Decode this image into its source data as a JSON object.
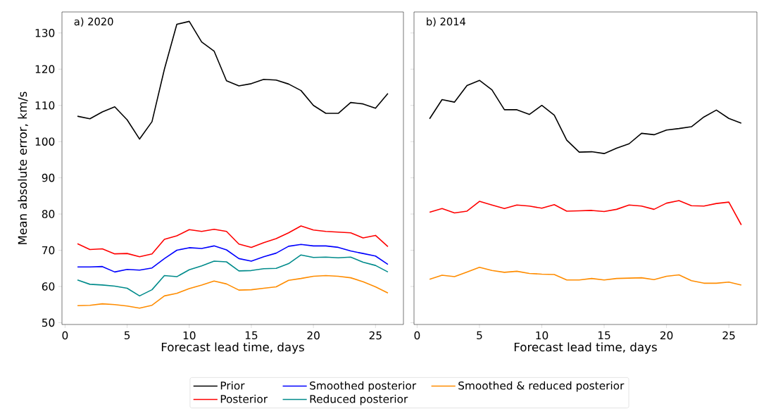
{
  "chart_data": [
    {
      "type": "line",
      "title": "a) 2020",
      "xlabel": "Forecast lead time, days",
      "ylabel": "Mean absolute error, km/s",
      "x": [
        1,
        2,
        3,
        4,
        5,
        6,
        7,
        8,
        9,
        10,
        11,
        12,
        13,
        14,
        15,
        16,
        17,
        18,
        19,
        20,
        21,
        22,
        23,
        24,
        25,
        26
      ],
      "xlim": [
        -0.25,
        27.25
      ],
      "xticks": [
        0,
        5,
        10,
        15,
        20,
        25
      ],
      "ylim": [
        49.5,
        135.8
      ],
      "yticks": [
        50,
        60,
        70,
        80,
        90,
        100,
        110,
        120,
        130
      ],
      "legend": "bottom",
      "line_style": "solid",
      "series": [
        {
          "name": "Prior",
          "color": "#000000",
          "values": [
            107,
            106.3,
            108.2,
            109.6,
            106,
            100.7,
            105.5,
            120,
            132.4,
            133.2,
            127.5,
            125,
            116.8,
            115.4,
            116,
            117.2,
            117,
            115.9,
            114.1,
            110,
            107.8,
            107.8,
            110.8,
            110.4,
            109.2,
            113.3
          ]
        },
        {
          "name": "Posterior",
          "color": "#ff0000",
          "values": [
            71.8,
            70.2,
            70.4,
            69,
            69.1,
            68.2,
            69,
            73,
            74,
            75.7,
            75.2,
            75.8,
            75.2,
            71.7,
            70.8,
            72.1,
            73.2,
            74.8,
            76.7,
            75.6,
            75.2,
            75,
            74.8,
            73.4,
            74.1,
            71
          ]
        },
        {
          "name": "Smoothed posterior",
          "color": "#0000ff",
          "values": [
            65.4,
            65.4,
            65.5,
            64,
            64.7,
            64.5,
            65.1,
            67.7,
            70,
            70.7,
            70.5,
            71.2,
            70.1,
            67.7,
            67,
            68.2,
            69.2,
            71.1,
            71.6,
            71.2,
            71.2,
            70.8,
            69.8,
            69.1,
            68.4,
            66.1
          ]
        },
        {
          "name": "Reduced posterior",
          "color": "#008b8b",
          "values": [
            61.8,
            60.6,
            60.4,
            60.1,
            59.5,
            57.4,
            59.1,
            63,
            62.7,
            64.6,
            65.7,
            67,
            66.8,
            64.3,
            64.4,
            64.9,
            65,
            66.3,
            68.7,
            68,
            68.1,
            67.9,
            68.1,
            66.7,
            65.8,
            64
          ]
        },
        {
          "name": "Smoothed & reduced posterior",
          "color": "#ff8c00",
          "values": [
            54.7,
            54.8,
            55.2,
            55,
            54.6,
            54,
            54.8,
            57.4,
            58.1,
            59.4,
            60.4,
            61.5,
            60.7,
            59,
            59.1,
            59.5,
            59.9,
            61.7,
            62.2,
            62.8,
            63,
            62.8,
            62.4,
            61.3,
            59.9,
            58.2
          ]
        }
      ]
    },
    {
      "type": "line",
      "title": "b) 2014",
      "xlabel": "Forecast lead time, days",
      "x": [
        1,
        2,
        3,
        4,
        5,
        6,
        7,
        8,
        9,
        10,
        11,
        12,
        13,
        14,
        15,
        16,
        17,
        18,
        19,
        20,
        21,
        22,
        23,
        24,
        25,
        26
      ],
      "xlim": [
        -0.25,
        27.25
      ],
      "xticks": [
        0,
        5,
        10,
        15,
        20,
        25
      ],
      "ylim": [
        49.5,
        135.8
      ],
      "yticks": [
        50,
        60,
        70,
        80,
        90,
        100,
        110,
        120,
        130
      ],
      "tick_labels": "x",
      "line_style": "solid",
      "series": [
        {
          "color": "#000000",
          "values": [
            106.3,
            111.6,
            110.9,
            115.5,
            116.9,
            114.3,
            108.8,
            108.8,
            107.5,
            110,
            107.3,
            100.4,
            97.1,
            97.2,
            96.7,
            98.2,
            99.4,
            102.3,
            101.9,
            103.2,
            103.6,
            104.1,
            106.8,
            108.7,
            106.4,
            105.1
          ]
        },
        {
          "color": "#ff0000",
          "values": [
            80.5,
            81.5,
            80.3,
            80.8,
            83.5,
            82.5,
            81.5,
            82.5,
            82.2,
            81.6,
            82.6,
            80.8,
            80.9,
            81,
            80.7,
            81.3,
            82.5,
            82.2,
            81.3,
            83,
            83.7,
            82.3,
            82.2,
            82.9,
            83.3,
            77
          ]
        },
        {
          "color": "#ff8c00",
          "values": [
            62,
            63.1,
            62.7,
            64,
            65.3,
            64.4,
            63.9,
            64.2,
            63.6,
            63.4,
            63.3,
            61.8,
            61.8,
            62.2,
            61.8,
            62.2,
            62.3,
            62.4,
            61.9,
            62.8,
            63.2,
            61.6,
            60.9,
            60.9,
            61.2,
            60.4
          ]
        }
      ]
    }
  ]
}
